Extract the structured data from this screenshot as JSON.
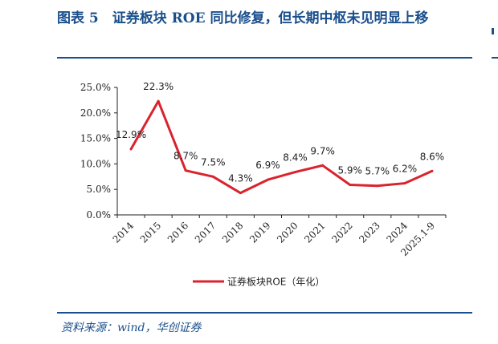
{
  "header": {
    "title": "图表 5　证券板块 ROE 同比修复，但长期中枢未见明显上移"
  },
  "footer": {
    "source": "资料来源：wind，华创证券"
  },
  "colors": {
    "accent": "#1a4f8c",
    "series": "#d9232d"
  },
  "chart_data": {
    "type": "line",
    "categories": [
      "2014",
      "2015",
      "2016",
      "2017",
      "2018",
      "2019",
      "2020",
      "2021",
      "2022",
      "2023",
      "2024",
      "2025.1-9"
    ],
    "series": [
      {
        "name": "证券板块ROE（年化）",
        "values": [
          12.9,
          22.3,
          8.7,
          7.5,
          4.3,
          6.9,
          8.4,
          9.7,
          5.9,
          5.7,
          6.2,
          8.6
        ],
        "labels": [
          "12.9%",
          "22.3%",
          "8.7%",
          "7.5%",
          "4.3%",
          "6.9%",
          "8.4%",
          "9.7%",
          "5.9%",
          "5.7%",
          "6.2%",
          "8.6%"
        ]
      }
    ],
    "yticks": [
      "0.0%",
      "5.0%",
      "10.0%",
      "15.0%",
      "20.0%",
      "25.0%"
    ],
    "ylim": [
      0,
      25
    ],
    "grid": false,
    "legend": "bottom"
  }
}
